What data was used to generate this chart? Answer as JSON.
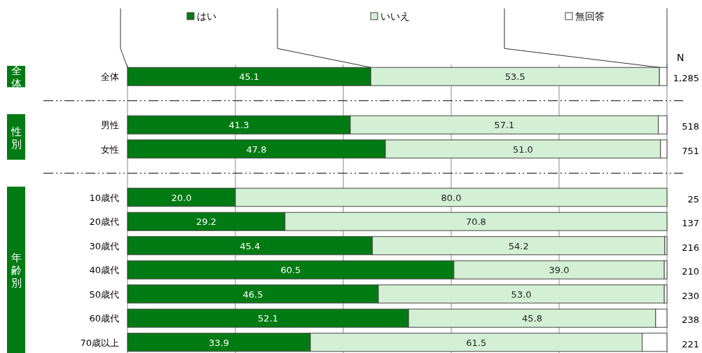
{
  "chart_data": {
    "type": "bar",
    "orientation": "horizontal",
    "stacked": true,
    "categories": [
      "全体",
      null,
      "男性",
      "女性",
      null,
      "10歳代",
      "20歳代",
      "30歳代",
      "40歳代",
      "50歳代",
      "60歳代",
      "70歳以上"
    ],
    "series": [
      {
        "name": "はい",
        "color": "#007a12",
        "values": [
          45.1,
          null,
          41.3,
          47.8,
          null,
          20.0,
          29.2,
          45.4,
          60.5,
          46.5,
          52.1,
          33.9
        ],
        "value_labels": [
          "45.1",
          null,
          "41.3",
          "47.8",
          null,
          "20.0",
          "29.2",
          "45.4",
          "60.5",
          "46.5",
          "52.1",
          "33.9"
        ]
      },
      {
        "name": "いいえ",
        "color": "#d4f0d4",
        "values": [
          53.5,
          null,
          57.1,
          51.0,
          null,
          80.0,
          70.8,
          54.2,
          39.0,
          53.0,
          45.8,
          61.5
        ],
        "value_labels": [
          "53.5",
          null,
          "57.1",
          "51.0",
          null,
          "80.0",
          "70.8",
          "54.2",
          "39.0",
          "53.0",
          "45.8",
          "61.5"
        ]
      },
      {
        "name": "無回答",
        "color": "#ffffff",
        "values": [
          1.4,
          null,
          1.6,
          1.2,
          null,
          0.0,
          0.0,
          0.4,
          0.5,
          0.5,
          2.1,
          4.6
        ]
      }
    ],
    "xlim": [
      0,
      100
    ],
    "xticks": [
      {
        "value": 0,
        "label": null
      },
      {
        "value": 20,
        "label": null
      },
      {
        "value": 40,
        "label": null
      },
      {
        "value": 60,
        "label": null
      },
      {
        "value": 80,
        "label": null
      },
      {
        "value": 100,
        "label": null
      }
    ],
    "grid": "x",
    "legend": "top",
    "annotations": [
      "N",
      "1,285",
      "518",
      "751",
      "25",
      "137",
      "216",
      "210",
      "230",
      "238",
      "221",
      "全体",
      "性別",
      "年齢別"
    ]
  }
}
